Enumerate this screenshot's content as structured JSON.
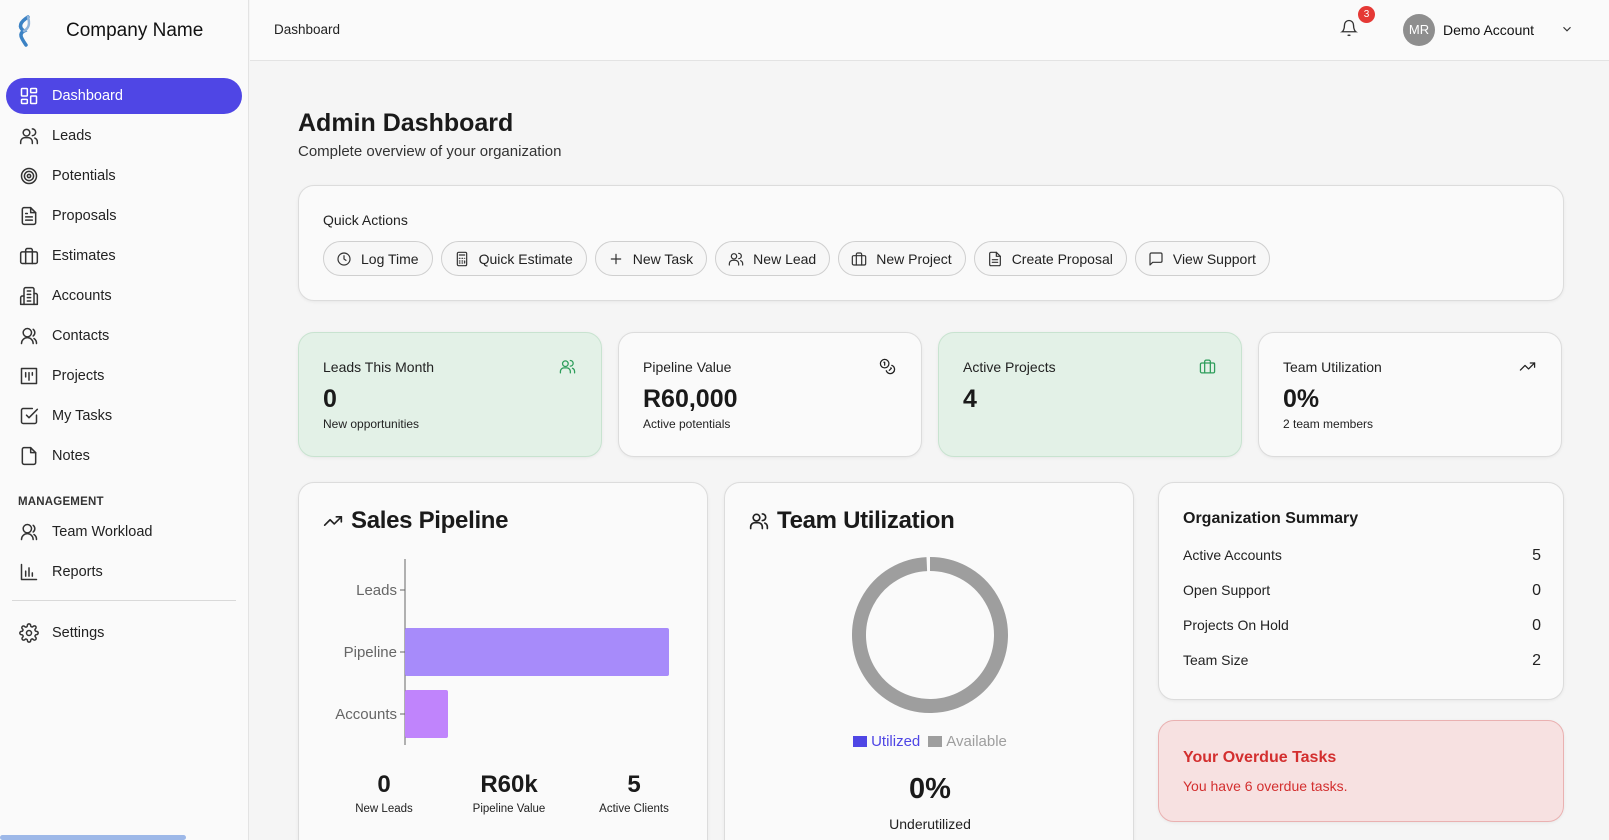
{
  "brand": {
    "name": "Company Name"
  },
  "sidebar": {
    "items": [
      {
        "label": "Dashboard",
        "icon": "dashboard-icon",
        "active": true
      },
      {
        "label": "Leads",
        "icon": "users-icon"
      },
      {
        "label": "Potentials",
        "icon": "target-icon"
      },
      {
        "label": "Proposals",
        "icon": "document-icon"
      },
      {
        "label": "Estimates",
        "icon": "briefcase-icon"
      },
      {
        "label": "Accounts",
        "icon": "building-icon"
      },
      {
        "label": "Contacts",
        "icon": "contacts-icon"
      },
      {
        "label": "Projects",
        "icon": "projects-icon"
      },
      {
        "label": "My Tasks",
        "icon": "check-square-icon"
      },
      {
        "label": "Notes",
        "icon": "note-icon"
      }
    ],
    "section_label": "MANAGEMENT",
    "management_items": [
      {
        "label": "Team Workload",
        "icon": "team-icon"
      },
      {
        "label": "Reports",
        "icon": "bar-chart-icon"
      }
    ],
    "settings_label": "Settings"
  },
  "topbar": {
    "breadcrumb": "Dashboard",
    "notification_count": "3",
    "avatar_initials": "MR",
    "account_name": "Demo Account"
  },
  "page": {
    "title": "Admin Dashboard",
    "subtitle": "Complete overview of your organization"
  },
  "quick_actions": {
    "title": "Quick Actions",
    "buttons": [
      {
        "label": "Log Time",
        "icon": "clock-icon"
      },
      {
        "label": "Quick Estimate",
        "icon": "calculator-icon"
      },
      {
        "label": "New Task",
        "icon": "plus-icon"
      },
      {
        "label": "New Lead",
        "icon": "users-icon"
      },
      {
        "label": "New Project",
        "icon": "briefcase-icon"
      },
      {
        "label": "Create Proposal",
        "icon": "document-icon"
      },
      {
        "label": "View Support",
        "icon": "message-icon"
      }
    ]
  },
  "stats": [
    {
      "label": "Leads This Month",
      "value": "0",
      "sub": "New opportunities",
      "icon": "users-icon",
      "color": "#2e9e5b"
    },
    {
      "label": "Pipeline Value",
      "value": "R60,000",
      "sub": "Active potentials",
      "icon": "coins-icon",
      "color": "#222222"
    },
    {
      "label": "Active Projects",
      "value": "4",
      "sub": "",
      "icon": "briefcase-icon",
      "color": "#2e9e5b"
    },
    {
      "label": "Team Utilization",
      "value": "0%",
      "sub": "2 team members",
      "icon": "trending-up-icon",
      "color": "#222222"
    }
  ],
  "sales_pipeline": {
    "title": "Sales Pipeline",
    "stats": [
      {
        "value": "0",
        "label": "New Leads"
      },
      {
        "value": "R60k",
        "label": "Pipeline Value"
      },
      {
        "value": "5",
        "label": "Active Clients"
      }
    ]
  },
  "team_utilization": {
    "title": "Team Utilization",
    "value": "0%",
    "label": "Underutilized"
  },
  "org_summary": {
    "title": "Organization Summary",
    "rows": [
      {
        "label": "Active Accounts",
        "value": "5"
      },
      {
        "label": "Open Support",
        "value": "0"
      },
      {
        "label": "Projects On Hold",
        "value": "0"
      },
      {
        "label": "Team Size",
        "value": "2"
      }
    ]
  },
  "overdue": {
    "title": "Your Overdue Tasks",
    "text": "You have 6 overdue tasks."
  },
  "chart_data": [
    {
      "type": "bar",
      "orientation": "horizontal",
      "categories": [
        "Leads",
        "Pipeline",
        "Accounts"
      ],
      "values": [
        0,
        60000,
        5
      ],
      "colors": [
        "#a78bfa",
        "#a78bfa",
        "#c084fc"
      ]
    },
    {
      "type": "pie",
      "style": "donut",
      "labels": [
        "Utilized",
        "Available"
      ],
      "values": [
        0,
        100
      ],
      "colors": [
        "#4f46e5",
        "#9e9e9e"
      ]
    }
  ]
}
